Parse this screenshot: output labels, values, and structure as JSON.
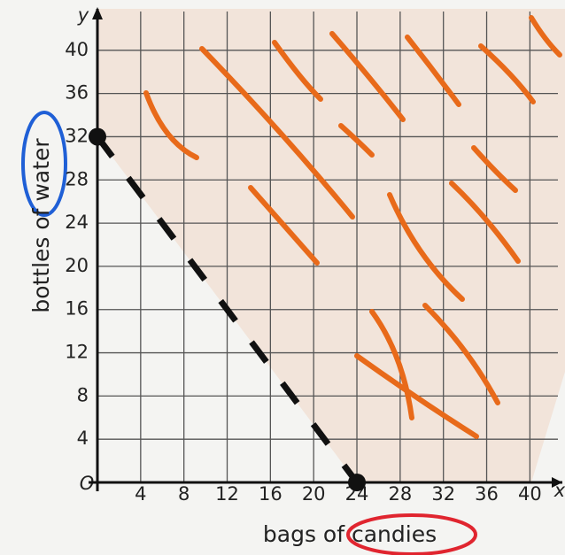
{
  "chart_data": {
    "type": "line",
    "x_label": "bags of candies",
    "y_label": "bottles of water",
    "x_axis_name": "x",
    "y_axis_name": "y",
    "origin_label": "O",
    "x": [
      0,
      24
    ],
    "values": [
      32,
      0
    ],
    "color": "#111111",
    "line_style": "dashed",
    "xlim": [
      0,
      43
    ],
    "ylim": [
      0,
      44
    ],
    "xticks": [
      4,
      8,
      12,
      16,
      20,
      24,
      28,
      32,
      36,
      40
    ],
    "yticks": [
      4,
      8,
      12,
      16,
      20,
      24,
      28,
      32,
      36,
      40
    ],
    "grid": true
  }
}
